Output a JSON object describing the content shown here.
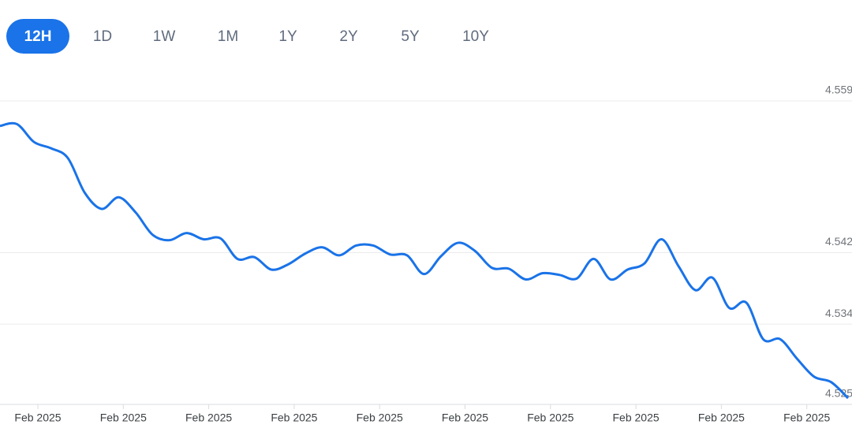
{
  "tabs": [
    "12H",
    "1D",
    "1W",
    "1M",
    "1Y",
    "2Y",
    "5Y",
    "10Y"
  ],
  "selected_tab": 0,
  "chart_data": {
    "type": "line",
    "x_tick_labels": [
      "Feb 2025",
      "Feb 2025",
      "Feb 2025",
      "Feb 2025",
      "Feb 2025",
      "Feb 2025",
      "Feb 2025",
      "Feb 2025",
      "Feb 2025",
      "Feb 2025"
    ],
    "series": [
      {
        "color": "#1a73e8",
        "values": [
          4.5562,
          4.5564,
          4.5544,
          4.5537,
          4.5526,
          4.5487,
          4.5469,
          4.5482,
          4.5465,
          4.544,
          4.5434,
          4.5442,
          4.5435,
          4.5436,
          4.5413,
          4.5415,
          4.5401,
          4.5407,
          4.5419,
          4.5426,
          4.5417,
          4.5428,
          4.5428,
          4.5418,
          4.5417,
          4.5396,
          4.5416,
          4.5431,
          4.5422,
          4.5403,
          4.5402,
          4.539,
          4.5397,
          4.5395,
          4.5391,
          4.5413,
          4.539,
          4.5401,
          4.5408,
          4.5435,
          4.5405,
          4.5378,
          4.5392,
          4.5358,
          4.5364,
          4.5323,
          4.5323,
          4.5301,
          4.5281,
          4.5275,
          4.5257
        ]
      }
    ],
    "ylim": [
      4.525,
      4.559
    ],
    "yticks": [
      4.559,
      4.542,
      4.534,
      4.525
    ],
    "grid": true
  }
}
